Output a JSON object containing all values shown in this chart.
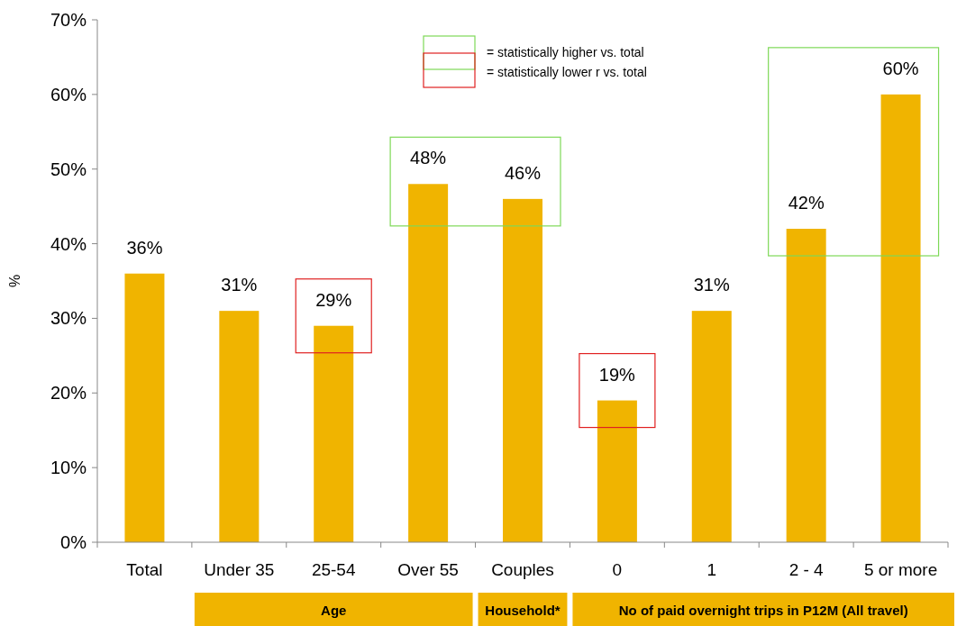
{
  "chart_data": {
    "type": "bar",
    "categories": [
      "Total",
      "Under 35",
      "25-54",
      "Over 55",
      "Couples",
      "0",
      "1",
      "2 - 4",
      "5 or more"
    ],
    "values": [
      36,
      31,
      29,
      48,
      46,
      19,
      31,
      42,
      60
    ],
    "color": "#f0b400",
    "ylabel": "%",
    "ylim": [
      0,
      70
    ],
    "yticks": [
      {
        "value": 0,
        "label": "0%"
      },
      {
        "value": 10,
        "label": "10%"
      },
      {
        "value": 20,
        "label": "20%"
      },
      {
        "value": 30,
        "label": "30%"
      },
      {
        "value": 40,
        "label": "40%"
      },
      {
        "value": 50,
        "label": "50%"
      },
      {
        "value": 60,
        "label": "60%"
      },
      {
        "value": 70,
        "label": "70%"
      }
    ],
    "value_labels": [
      "36%",
      "31%",
      "29%",
      "48%",
      "46%",
      "19%",
      "31%",
      "42%",
      "60%"
    ],
    "annotations": [
      "= statistically  higher vs. total",
      "= statistically  lower r vs. total",
      "Age",
      "Household*",
      "No of paid overnight trips in P12M (All travel)"
    ],
    "grid": false
  }
}
